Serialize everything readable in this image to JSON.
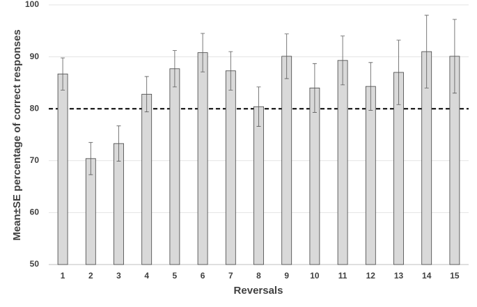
{
  "chart_data": {
    "type": "bar",
    "x_label": "Reversals",
    "y_label": "Mean±SE percentage of correct responses",
    "categories": [
      "1",
      "2",
      "3",
      "4",
      "5",
      "6",
      "7",
      "8",
      "9",
      "10",
      "11",
      "12",
      "13",
      "14",
      "15"
    ],
    "values": [
      86.7,
      70.4,
      73.3,
      82.8,
      87.7,
      90.8,
      87.3,
      80.4,
      90.1,
      84.0,
      89.3,
      84.3,
      87.0,
      91.0,
      90.1
    ],
    "errors": [
      3.1,
      3.1,
      3.4,
      3.4,
      3.5,
      3.7,
      3.7,
      3.8,
      4.3,
      4.7,
      4.7,
      4.6,
      6.2,
      7.0,
      7.1
    ],
    "color": "#d9d9d9",
    "reference_line": 80,
    "ylim": [
      50,
      100
    ],
    "yticks": [
      50,
      60,
      70,
      80,
      90,
      100
    ],
    "grid": true
  }
}
